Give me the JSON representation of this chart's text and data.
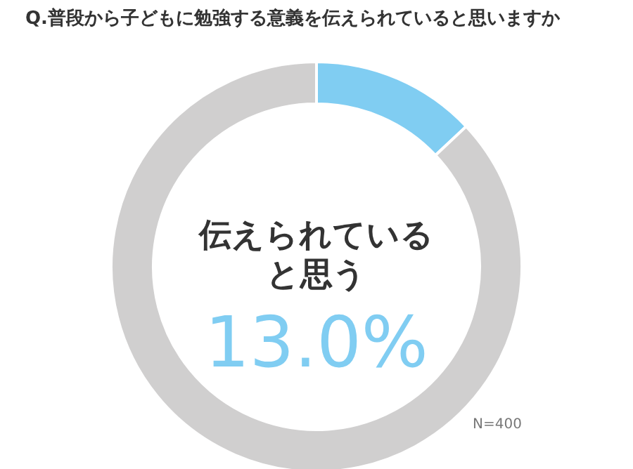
{
  "chart_data": {
    "type": "donut",
    "title": "Q.普段から子どもに勉強する意義を伝えられていると思いますか",
    "categories": [
      "伝えられていると思う",
      null
    ],
    "values": [
      13.0,
      87.0
    ],
    "colors": [
      "#80cdf2",
      "#d0cfcf"
    ],
    "value_labels": [
      "13.0%",
      null
    ],
    "legend": false,
    "annotations": [
      "N=400"
    ]
  }
}
